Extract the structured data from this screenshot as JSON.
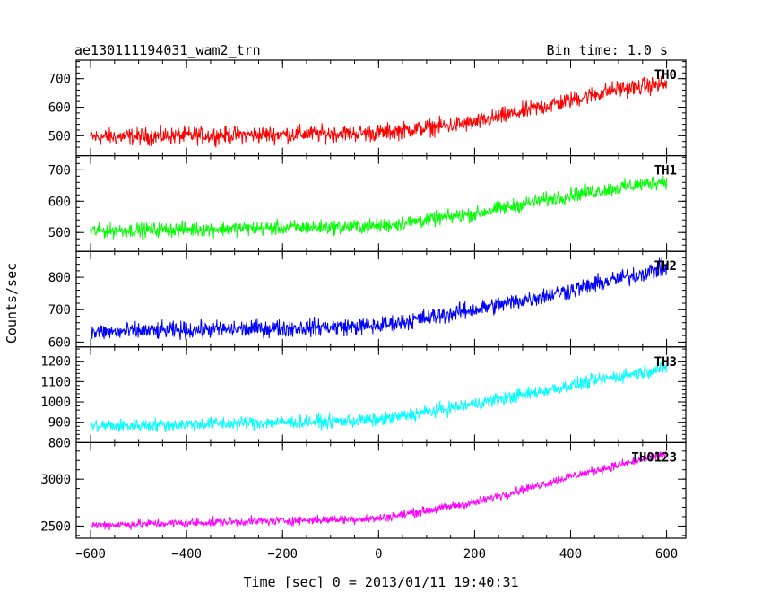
{
  "header": {
    "title": "ae130111194031_wam2_trn",
    "bin_time": "Bin time: 1.0 s"
  },
  "chart_data": {
    "type": "line",
    "xlabel": "Time [sec] 0 = 2013/01/11 19:40:31",
    "ylabel": "Counts/sec",
    "xlim": [
      -630,
      640
    ],
    "xticks": [
      -600,
      -400,
      -200,
      0,
      200,
      400,
      600
    ],
    "xtick_labels": [
      "−600",
      "−400",
      "−200",
      "0",
      "200",
      "400",
      "600"
    ],
    "x_range": [
      -600,
      600
    ],
    "panels": [
      {
        "name": "TH0",
        "color": "#ff0000",
        "ylim": [
          430,
          765
        ],
        "yticks": [
          500,
          600,
          700
        ],
        "ytick_labels": [
          "500",
          "600",
          "700"
        ],
        "baseline_points": [
          [
            -600,
            495
          ],
          [
            0,
            510
          ],
          [
            200,
            545
          ],
          [
            400,
            625
          ],
          [
            500,
            665
          ],
          [
            600,
            680
          ]
        ],
        "noise_amplitude": 45
      },
      {
        "name": "TH1",
        "color": "#00ff00",
        "ylim": [
          440,
          745
        ],
        "yticks": [
          500,
          600,
          700
        ],
        "ytick_labels": [
          "500",
          "600",
          "700"
        ],
        "baseline_points": [
          [
            -600,
            505
          ],
          [
            0,
            520
          ],
          [
            200,
            560
          ],
          [
            400,
            620
          ],
          [
            600,
            665
          ]
        ],
        "noise_amplitude": 35
      },
      {
        "name": "TH2",
        "color": "#0000ff",
        "ylim": [
          585,
          880
        ],
        "yticks": [
          600,
          700,
          800
        ],
        "ytick_labels": [
          "600",
          "700",
          "800"
        ],
        "baseline_points": [
          [
            -600,
            630
          ],
          [
            0,
            650
          ],
          [
            200,
            700
          ],
          [
            400,
            760
          ],
          [
            600,
            830
          ]
        ],
        "noise_amplitude": 40
      },
      {
        "name": "TH3",
        "color": "#00ffff",
        "ylim": [
          800,
          1270
        ],
        "yticks": [
          800,
          900,
          1000,
          1100,
          1200
        ],
        "ytick_labels": [
          "800",
          "900",
          "1000",
          "1100",
          "1200"
        ],
        "baseline_points": [
          [
            -600,
            880
          ],
          [
            0,
            910
          ],
          [
            200,
            990
          ],
          [
            400,
            1080
          ],
          [
            600,
            1170
          ]
        ],
        "noise_amplitude": 50
      },
      {
        "name": "TH0123",
        "color": "#ff00ff",
        "ylim": [
          2370,
          3390
        ],
        "yticks": [
          2500,
          3000
        ],
        "ytick_labels": [
          "2500",
          "3000"
        ],
        "baseline_points": [
          [
            -600,
            2510
          ],
          [
            0,
            2580
          ],
          [
            200,
            2750
          ],
          [
            400,
            3030
          ],
          [
            600,
            3270
          ]
        ],
        "noise_amplitude": 70
      }
    ]
  }
}
